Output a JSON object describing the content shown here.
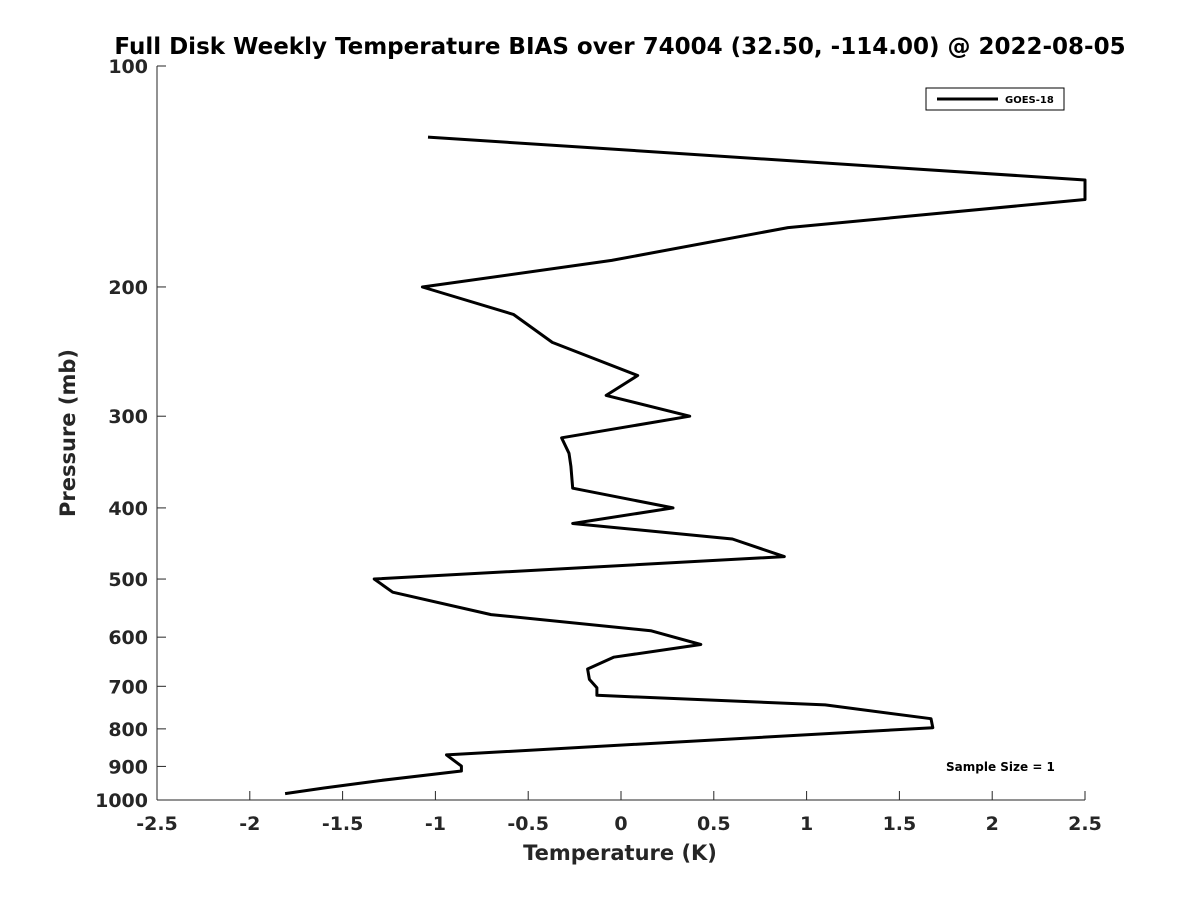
{
  "chart_data": {
    "type": "line",
    "title": "Full Disk Weekly Temperature BIAS over 74004 (32.50, -114.00) @ 2022-08-05",
    "xlabel": "Temperature (K)",
    "ylabel": "Pressure (mb)",
    "xlim": [
      -2.5,
      2.5
    ],
    "ylim": [
      1000,
      100
    ],
    "yscale": "log",
    "y_reversed": true,
    "x_ticks": [
      -2.5,
      -2,
      -1.5,
      -1,
      -0.5,
      0,
      0.5,
      1,
      1.5,
      2,
      2.5
    ],
    "x_tick_labels": [
      "-2.5",
      "-2",
      "-1.5",
      "-1",
      "-0.5",
      "0",
      "0.5",
      "1",
      "1.5",
      "2",
      "2.5"
    ],
    "y_ticks": [
      100,
      200,
      300,
      400,
      500,
      600,
      700,
      800,
      900,
      1000
    ],
    "y_tick_labels": [
      "100",
      "200",
      "300",
      "400",
      "500",
      "600",
      "700",
      "800",
      "900",
      "1000"
    ],
    "grid": false,
    "legend": {
      "position": "top-right",
      "entries": [
        "GOES-18"
      ]
    },
    "annotation": "Sample Size = 1",
    "series": [
      {
        "name": "GOES-18",
        "color": "#000000",
        "points": [
          {
            "x": -1.04,
            "y": 125
          },
          {
            "x": 2.5,
            "y": 143
          },
          {
            "x": 2.5,
            "y": 152
          },
          {
            "x": 0.9,
            "y": 166
          },
          {
            "x": -0.05,
            "y": 184
          },
          {
            "x": -1.07,
            "y": 200
          },
          {
            "x": -0.58,
            "y": 218
          },
          {
            "x": -0.37,
            "y": 238
          },
          {
            "x": 0.09,
            "y": 264
          },
          {
            "x": -0.08,
            "y": 281
          },
          {
            "x": 0.37,
            "y": 300
          },
          {
            "x": -0.32,
            "y": 321
          },
          {
            "x": -0.28,
            "y": 337
          },
          {
            "x": -0.27,
            "y": 351
          },
          {
            "x": -0.26,
            "y": 376
          },
          {
            "x": 0.28,
            "y": 400
          },
          {
            "x": -0.26,
            "y": 420
          },
          {
            "x": 0.6,
            "y": 441
          },
          {
            "x": 0.88,
            "y": 466
          },
          {
            "x": -1.33,
            "y": 500
          },
          {
            "x": -1.23,
            "y": 521
          },
          {
            "x": -0.7,
            "y": 559
          },
          {
            "x": 0.16,
            "y": 588
          },
          {
            "x": 0.43,
            "y": 614
          },
          {
            "x": -0.04,
            "y": 639
          },
          {
            "x": -0.18,
            "y": 663
          },
          {
            "x": -0.17,
            "y": 685
          },
          {
            "x": -0.13,
            "y": 703
          },
          {
            "x": -0.13,
            "y": 720
          },
          {
            "x": 1.1,
            "y": 742
          },
          {
            "x": 1.67,
            "y": 775
          },
          {
            "x": 1.68,
            "y": 797
          },
          {
            "x": -0.94,
            "y": 868
          },
          {
            "x": -0.86,
            "y": 899
          },
          {
            "x": -0.86,
            "y": 913
          },
          {
            "x": -1.3,
            "y": 941
          },
          {
            "x": -1.6,
            "y": 963
          },
          {
            "x": -1.81,
            "y": 980
          }
        ]
      }
    ]
  }
}
